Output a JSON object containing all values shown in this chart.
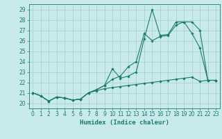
{
  "title": "",
  "xlabel": "Humidex (Indice chaleur)",
  "bg_color": "#c8eaea",
  "grid_color": "#a8cccc",
  "line_color": "#1a7a6e",
  "xlim": [
    -0.5,
    23.5
  ],
  "ylim": [
    19.5,
    29.5
  ],
  "yticks": [
    20,
    21,
    22,
    23,
    24,
    25,
    26,
    27,
    28,
    29
  ],
  "xticks": [
    0,
    1,
    2,
    3,
    4,
    5,
    6,
    7,
    8,
    9,
    10,
    11,
    12,
    13,
    14,
    15,
    16,
    17,
    18,
    19,
    20,
    21,
    22,
    23
  ],
  "line1_x": [
    0,
    1,
    2,
    3,
    4,
    5,
    6,
    7,
    8,
    9,
    10,
    11,
    12,
    13,
    14,
    15,
    16,
    17,
    18,
    19,
    20,
    21,
    22,
    23
  ],
  "line1_y": [
    21.0,
    20.7,
    20.2,
    20.6,
    20.5,
    20.3,
    20.4,
    21.0,
    21.3,
    21.7,
    23.3,
    22.4,
    22.6,
    23.0,
    26.2,
    29.0,
    26.5,
    26.6,
    27.8,
    27.8,
    27.8,
    27.0,
    22.2,
    22.2
  ],
  "line2_x": [
    0,
    1,
    2,
    3,
    4,
    5,
    6,
    7,
    8,
    9,
    10,
    11,
    12,
    13,
    14,
    15,
    16,
    17,
    18,
    19,
    20,
    21,
    22,
    23
  ],
  "line2_y": [
    21.0,
    20.7,
    20.2,
    20.6,
    20.5,
    20.3,
    20.4,
    21.0,
    21.3,
    21.7,
    22.3,
    22.6,
    23.5,
    24.0,
    26.7,
    26.0,
    26.4,
    26.5,
    27.5,
    27.8,
    26.7,
    25.3,
    22.2,
    22.2
  ],
  "line3_x": [
    0,
    1,
    2,
    3,
    4,
    5,
    6,
    7,
    8,
    9,
    10,
    11,
    12,
    13,
    14,
    15,
    16,
    17,
    18,
    19,
    20,
    21,
    22,
    23
  ],
  "line3_y": [
    21.0,
    20.7,
    20.2,
    20.6,
    20.5,
    20.3,
    20.4,
    21.0,
    21.2,
    21.4,
    21.5,
    21.6,
    21.7,
    21.8,
    21.9,
    22.0,
    22.1,
    22.2,
    22.3,
    22.4,
    22.5,
    22.1,
    22.2,
    22.2
  ],
  "tick_fontsize": 5.5,
  "xlabel_fontsize": 6.5,
  "lw": 0.8,
  "ms": 1.8
}
